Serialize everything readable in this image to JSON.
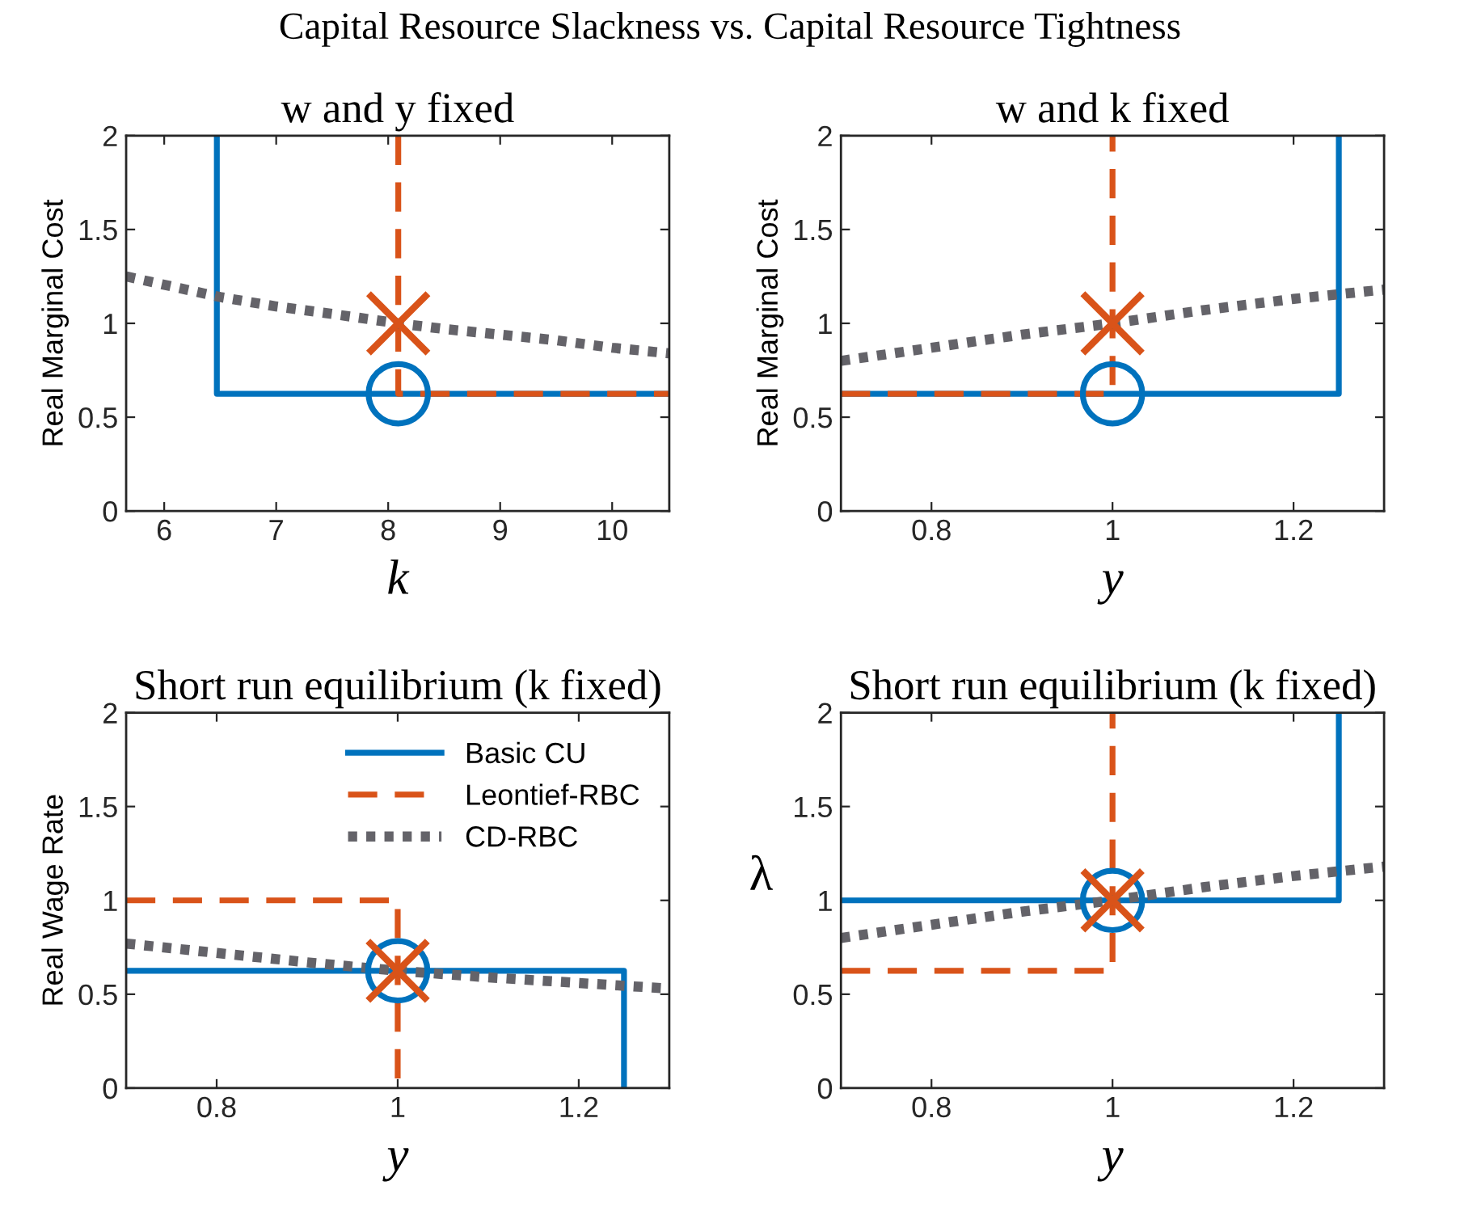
{
  "chart_data": [
    {
      "type": "line",
      "title": "Capital Resource Slackness vs. Capital Resource Tightness",
      "subtitle": "w and y fixed",
      "xlabel": "k",
      "ylabel": "Real Marginal Cost",
      "xlim": [
        5.66,
        10.51
      ],
      "ylim": [
        0,
        2
      ],
      "xticks": [
        6,
        7,
        8,
        9,
        10
      ],
      "yticks": [
        0,
        0.5,
        1,
        1.5,
        2
      ],
      "series": [
        {
          "color": "#0072bd",
          "line_style": "solid",
          "x": [
            6.47,
            6.47,
            10.51
          ],
          "values": [
            2,
            0.625,
            0.625
          ]
        },
        {
          "color": "#d95319",
          "line_style": "dashed",
          "x": [
            8.09,
            8.09,
            10.51
          ],
          "values": [
            2,
            0.625,
            0.625
          ]
        },
        {
          "color": "#646369",
          "line_style": "dotted",
          "x": [
            5.66,
            6.5,
            7,
            7.5,
            8.09,
            8.5,
            9,
            9.5,
            10,
            10.51
          ],
          "values": [
            1.25,
            1.14,
            1.09,
            1.05,
            1.0,
            0.97,
            0.94,
            0.91,
            0.87,
            0.84
          ]
        },
        {
          "type": "scatter",
          "marker": "circle",
          "color": "#0072bd",
          "x": [
            8.09
          ],
          "values": [
            0.625
          ]
        },
        {
          "type": "scatter",
          "marker": "cross",
          "color": "#d95319",
          "x": [
            8.09
          ],
          "values": [
            1.0
          ]
        }
      ]
    },
    {
      "type": "line",
      "title": "w and k fixed",
      "xlabel": "y",
      "ylabel": "Real Marginal Cost",
      "xlim": [
        0.7,
        1.3
      ],
      "ylim": [
        0,
        2
      ],
      "xticks": [
        0.8,
        1,
        1.2
      ],
      "yticks": [
        0,
        0.5,
        1,
        1.5,
        2
      ],
      "series": [
        {
          "color": "#0072bd",
          "line_style": "solid",
          "x": [
            0.7,
            1.25,
            1.25
          ],
          "values": [
            0.625,
            0.625,
            2
          ]
        },
        {
          "color": "#d95319",
          "line_style": "dashed",
          "x": [
            0.7,
            1,
            1
          ],
          "values": [
            0.625,
            0.625,
            2
          ]
        },
        {
          "color": "#646369",
          "line_style": "dotted",
          "x": [
            0.7,
            0.8,
            0.9,
            1.0,
            1.1,
            1.2,
            1.3
          ],
          "values": [
            0.8,
            0.87,
            0.94,
            1.0,
            1.07,
            1.13,
            1.18
          ]
        },
        {
          "type": "scatter",
          "marker": "circle",
          "color": "#0072bd",
          "x": [
            1
          ],
          "values": [
            0.625
          ]
        },
        {
          "type": "scatter",
          "marker": "cross",
          "color": "#d95319",
          "x": [
            1
          ],
          "values": [
            1.0
          ]
        }
      ]
    },
    {
      "type": "line",
      "title": "Short run equilibrium (k fixed)",
      "xlabel": "y",
      "ylabel": "Real Wage Rate",
      "xlim": [
        0.7,
        1.3
      ],
      "ylim": [
        0,
        2
      ],
      "xticks": [
        0.8,
        1,
        1.2
      ],
      "yticks": [
        0,
        0.5,
        1,
        1.5,
        2
      ],
      "legend": "top right",
      "series": [
        {
          "name": "Basic CU",
          "color": "#0072bd",
          "line_style": "solid",
          "x": [
            0.7,
            1.25,
            1.25
          ],
          "values": [
            0.625,
            0.625,
            0
          ]
        },
        {
          "name": "Leontief-RBC",
          "color": "#d95319",
          "line_style": "dashed",
          "x": [
            0.7,
            1,
            1
          ],
          "values": [
            1,
            1,
            0
          ]
        },
        {
          "name": "CD-RBC",
          "color": "#646369",
          "line_style": "dotted",
          "x": [
            0.7,
            0.8,
            0.9,
            1.0,
            1.1,
            1.2,
            1.3
          ],
          "values": [
            0.77,
            0.72,
            0.67,
            0.625,
            0.59,
            0.56,
            0.53
          ]
        },
        {
          "type": "scatter",
          "marker": "circle",
          "color": "#0072bd",
          "x": [
            1
          ],
          "values": [
            0.625
          ]
        },
        {
          "type": "scatter",
          "marker": "cross",
          "color": "#d95319",
          "x": [
            1
          ],
          "values": [
            0.625
          ]
        }
      ]
    },
    {
      "type": "line",
      "title": "Short run equilibrium (k fixed)",
      "xlabel": "y",
      "ylabel": "λ",
      "xlim": [
        0.7,
        1.3
      ],
      "ylim": [
        0,
        2
      ],
      "xticks": [
        0.8,
        1,
        1.2
      ],
      "yticks": [
        0,
        0.5,
        1,
        1.5,
        2
      ],
      "series": [
        {
          "color": "#0072bd",
          "line_style": "solid",
          "x": [
            0.7,
            1.25,
            1.25
          ],
          "values": [
            1,
            1,
            2
          ]
        },
        {
          "color": "#d95319",
          "line_style": "dashed",
          "x": [
            0.7,
            1,
            1
          ],
          "values": [
            0.625,
            0.625,
            2
          ]
        },
        {
          "color": "#646369",
          "line_style": "dotted",
          "x": [
            0.7,
            0.8,
            0.9,
            1.0,
            1.1,
            1.2,
            1.3
          ],
          "values": [
            0.8,
            0.87,
            0.94,
            1.0,
            1.07,
            1.13,
            1.18
          ]
        },
        {
          "type": "scatter",
          "marker": "circle",
          "color": "#0072bd",
          "x": [
            1
          ],
          "values": [
            1
          ]
        },
        {
          "type": "scatter",
          "marker": "cross",
          "color": "#d95319",
          "x": [
            1
          ],
          "values": [
            1
          ]
        }
      ]
    }
  ]
}
